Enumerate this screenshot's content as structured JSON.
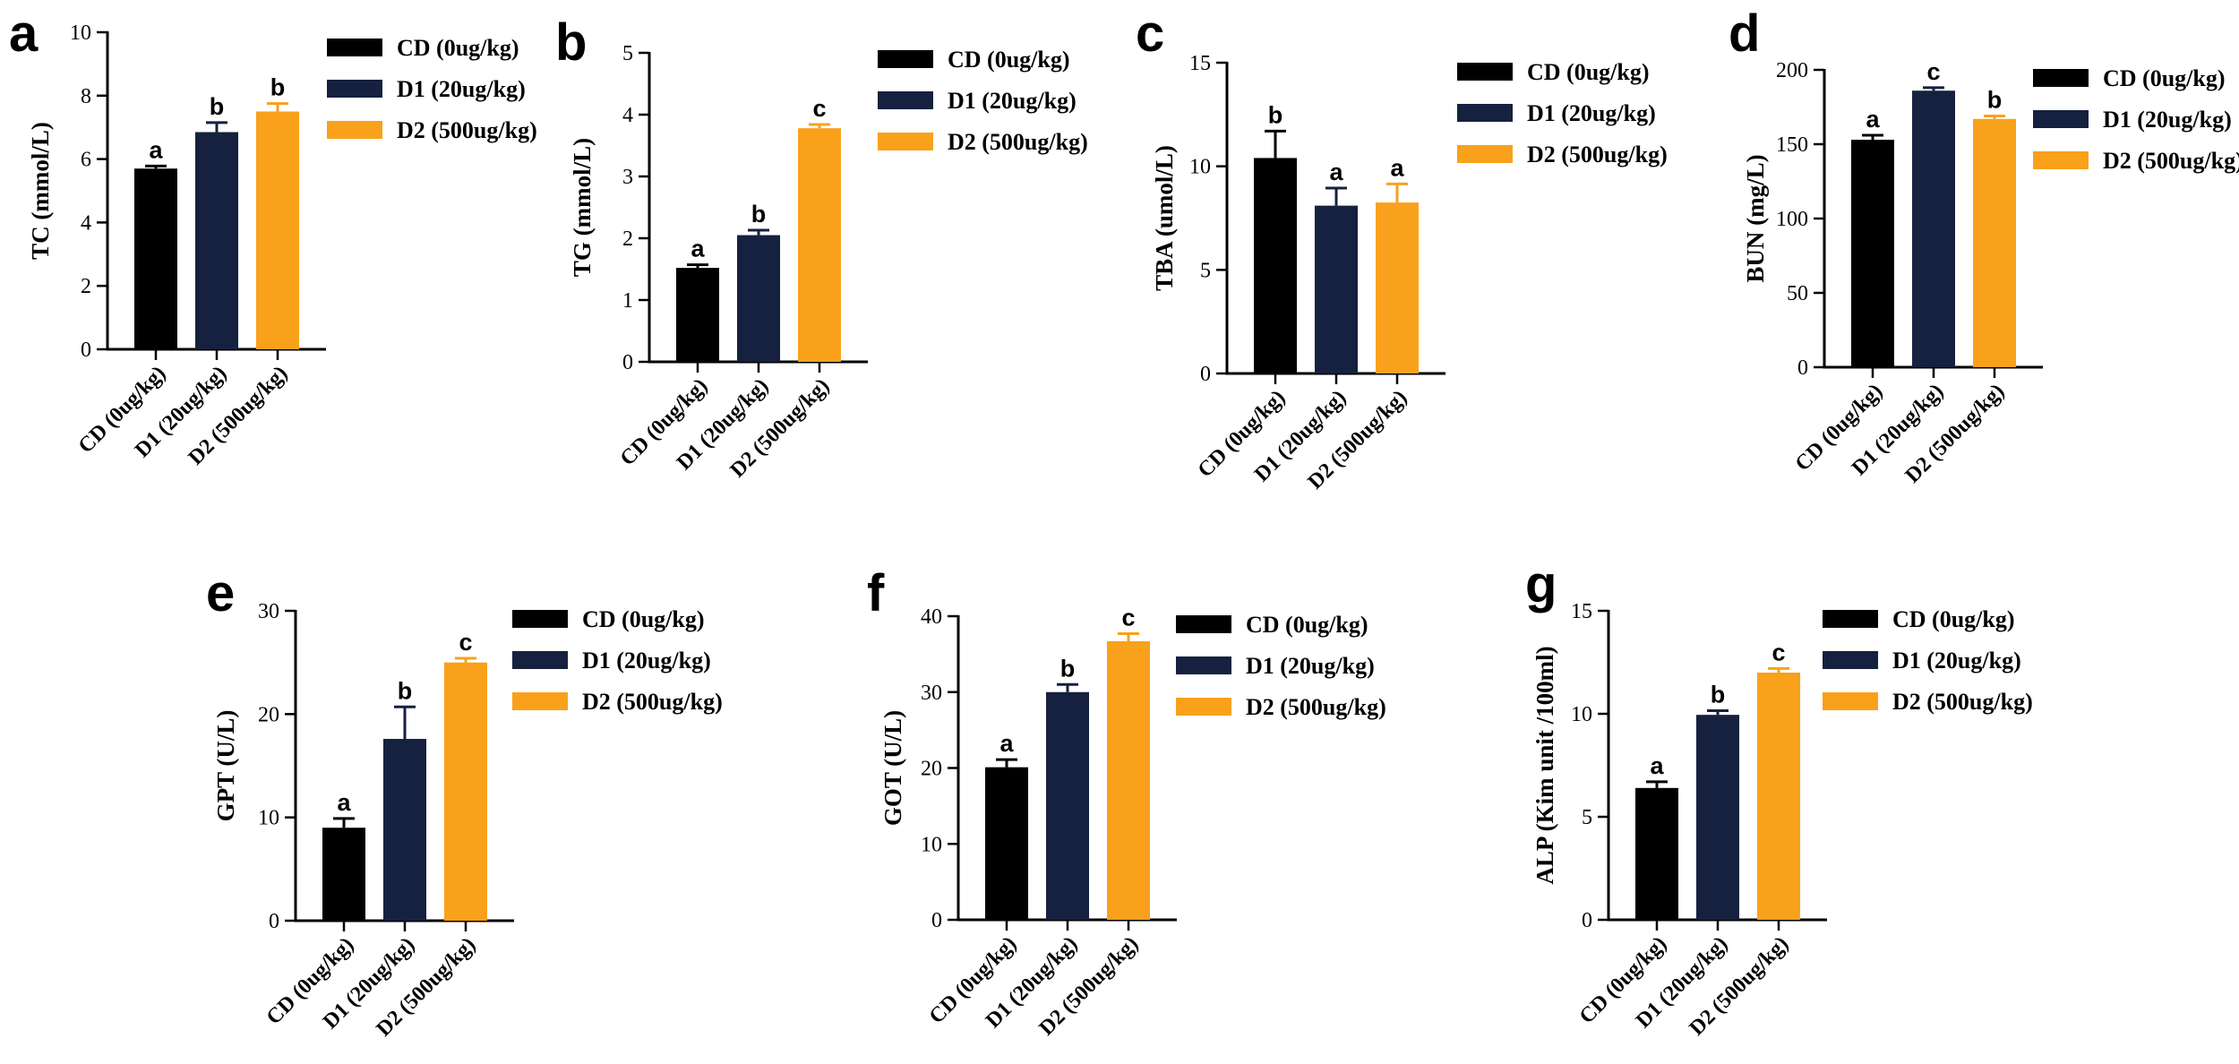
{
  "groups": [
    "CD (0ug/kg)",
    "D1 (20ug/kg)",
    "D2 (500ug/kg)"
  ],
  "colors": [
    "#000000",
    "#16213f",
    "#f9a11b"
  ],
  "chart_data": [
    {
      "panel": "a",
      "type": "bar",
      "ylabel": "TC (mmol/L)",
      "ylim": [
        0,
        10
      ],
      "yticks": [
        0,
        2,
        4,
        6,
        8,
        10
      ],
      "values": [
        5.7,
        6.85,
        7.5
      ],
      "errors": [
        0.08,
        0.3,
        0.25
      ],
      "letters": [
        "a",
        "b",
        "b"
      ]
    },
    {
      "panel": "b",
      "type": "bar",
      "ylabel": "TG (mmol/L)",
      "ylim": [
        0,
        5
      ],
      "yticks": [
        0,
        1,
        2,
        3,
        4,
        5
      ],
      "values": [
        1.52,
        2.05,
        3.78
      ],
      "errors": [
        0.05,
        0.08,
        0.06
      ],
      "letters": [
        "a",
        "b",
        "c"
      ]
    },
    {
      "panel": "c",
      "type": "bar",
      "ylabel": "TBA (umol/L)",
      "ylim": [
        0,
        15
      ],
      "yticks": [
        0,
        5,
        10,
        15
      ],
      "values": [
        10.4,
        8.1,
        8.25
      ],
      "errors": [
        1.3,
        0.85,
        0.9
      ],
      "letters": [
        "b",
        "a",
        "a"
      ]
    },
    {
      "panel": "d",
      "type": "bar",
      "ylabel": "BUN (mg/L)",
      "ylim": [
        0,
        200
      ],
      "yticks": [
        0,
        50,
        100,
        150,
        200
      ],
      "values": [
        153,
        186,
        167
      ],
      "errors": [
        3,
        2,
        2
      ],
      "letters": [
        "a",
        "c",
        "b"
      ]
    },
    {
      "panel": "e",
      "type": "bar",
      "ylabel": "GPT (U/L)",
      "ylim": [
        0,
        30
      ],
      "yticks": [
        0,
        10,
        20,
        30
      ],
      "values": [
        9.0,
        17.6,
        25.0
      ],
      "errors": [
        0.9,
        3.1,
        0.4
      ],
      "letters": [
        "a",
        "b",
        "c"
      ]
    },
    {
      "panel": "f",
      "type": "bar",
      "ylabel": "GOT (U/L)",
      "ylim": [
        0,
        40
      ],
      "yticks": [
        0,
        10,
        20,
        30,
        40
      ],
      "values": [
        20.1,
        30.0,
        36.7
      ],
      "errors": [
        1.0,
        1.0,
        1.0
      ],
      "letters": [
        "a",
        "b",
        "c"
      ]
    },
    {
      "panel": "g",
      "type": "bar",
      "ylabel": "ALP (Kim unit /100ml)",
      "ylim": [
        0,
        15
      ],
      "yticks": [
        0,
        5,
        10,
        15
      ],
      "values": [
        6.4,
        9.95,
        12.0
      ],
      "errors": [
        0.3,
        0.2,
        0.2
      ],
      "letters": [
        "a",
        "b",
        "c"
      ]
    }
  ]
}
